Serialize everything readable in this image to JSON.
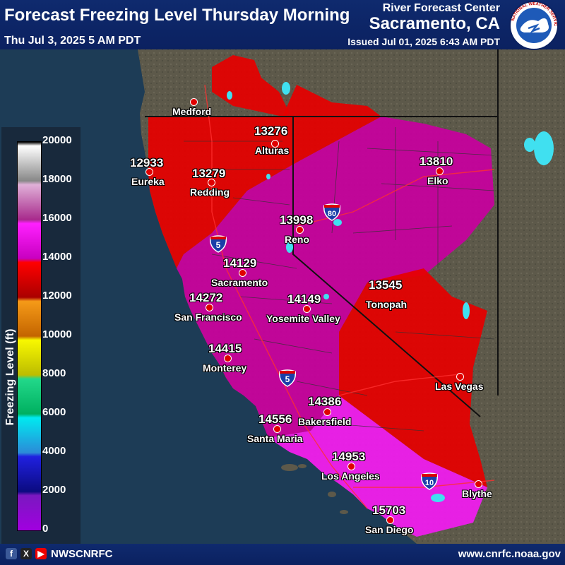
{
  "header": {
    "title": "Forecast Freezing Level Thursday Morning",
    "valid_time": "Thu Jul 3, 2025 5 AM PDT",
    "rfc_line1": "River Forecast Center",
    "rfc_line2": "Sacramento, CA",
    "issued": "Issued Jul 01, 2025 6:43 AM PDT",
    "logo_text": "NATIONAL WEATHER SERVICE"
  },
  "legend": {
    "axis_label": "Freezing Level (ft)",
    "ticks": [
      "20000",
      "18000",
      "16000",
      "14000",
      "12000",
      "10000",
      "8000",
      "6000",
      "4000",
      "2000",
      "0"
    ]
  },
  "stations": [
    {
      "name": "Medford",
      "value": ""
    },
    {
      "name": "Alturas",
      "value": "13276"
    },
    {
      "name": "Eureka",
      "value": "12933"
    },
    {
      "name": "Redding",
      "value": "13279"
    },
    {
      "name": "Elko",
      "value": "13810"
    },
    {
      "name": "Reno",
      "value": "13998"
    },
    {
      "name": "Sacramento",
      "value": "14129"
    },
    {
      "name": "San Francisco",
      "value": "14272"
    },
    {
      "name": "Yosemite Valley",
      "value": "14149"
    },
    {
      "name": "Tonopah",
      "value": "13545"
    },
    {
      "name": "Monterey",
      "value": "14415"
    },
    {
      "name": "Las Vegas",
      "value": ""
    },
    {
      "name": "Bakersfield",
      "value": "14386"
    },
    {
      "name": "Santa Maria",
      "value": "14556"
    },
    {
      "name": "Los Angeles",
      "value": "14953"
    },
    {
      "name": "Blythe",
      "value": ""
    },
    {
      "name": "San Diego",
      "value": "15703"
    }
  ],
  "highways": [
    {
      "label": "80"
    },
    {
      "label": "5"
    },
    {
      "label": "5"
    },
    {
      "label": "10"
    }
  ],
  "footer": {
    "handle": "NWSCNRFC",
    "url": "www.cnrfc.noaa.gov",
    "icons": [
      "facebook-icon",
      "x-icon",
      "youtube-icon"
    ]
  },
  "colors": {
    "freezing_13k_14k": "#ff0000",
    "freezing_14k_15k": "#cc00b8",
    "freezing_15k_16k": "#f020f0",
    "ocean": "#1d3c56",
    "land": "#5a5648"
  }
}
